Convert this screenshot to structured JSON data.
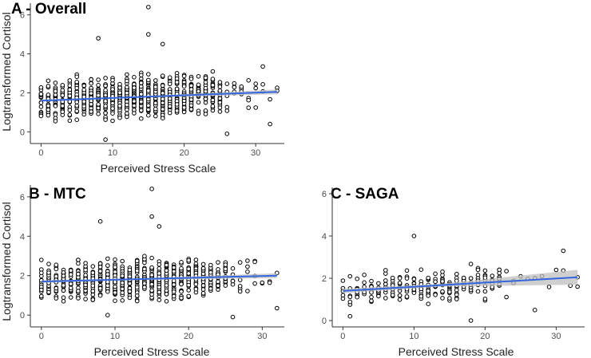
{
  "colors": {
    "points": "#000000",
    "fit_line": "#3366dd",
    "confidence_band": "#bfbfbf",
    "axis": "#333333",
    "tick_text": "#4d4d4d"
  },
  "chart_data": [
    {
      "type": "scatter",
      "title": "A - Overall",
      "xlabel": "Perceived Stress Scale",
      "ylabel": "Logtransformed Cortisol",
      "xlim": [
        -1.5,
        34
      ],
      "ylim": [
        -0.6,
        6.6
      ],
      "xticks": [
        0,
        10,
        20,
        30
      ],
      "yticks": [
        0,
        2,
        4,
        6
      ],
      "grid": false,
      "fit": {
        "method": "linear",
        "x": [
          0,
          33
        ],
        "y": [
          1.6,
          2.05
        ],
        "band_halfwidth": [
          0.05,
          0.12
        ]
      },
      "distribution": {
        "x_min": 0,
        "x_max": 33,
        "dense_x_max": 25,
        "y_center_at_0": 1.6,
        "y_center_at_33": 2.05,
        "y_spread": 1.45
      },
      "notable_points": [
        {
          "x": 15,
          "y": 6.4
        },
        {
          "x": 15,
          "y": 5.0
        },
        {
          "x": 8,
          "y": 4.8
        },
        {
          "x": 17,
          "y": 4.5
        },
        {
          "x": 31,
          "y": 3.35
        },
        {
          "x": 33,
          "y": 2.1
        },
        {
          "x": 32,
          "y": 0.4
        },
        {
          "x": 9,
          "y": -0.4
        },
        {
          "x": 26,
          "y": -0.1
        }
      ]
    },
    {
      "type": "scatter",
      "title": "B - MTC",
      "xlabel": "Perceived Stress Scale",
      "ylabel": "Logtransformed Cortisol",
      "xlim": [
        -1.5,
        33
      ],
      "ylim": [
        -0.6,
        6.6
      ],
      "xticks": [
        0,
        10,
        20,
        30
      ],
      "yticks": [
        0,
        2,
        4,
        6
      ],
      "grid": false,
      "fit": {
        "method": "linear",
        "x": [
          0,
          32
        ],
        "y": [
          1.7,
          2.0
        ],
        "band_halfwidth": [
          0.06,
          0.12
        ]
      },
      "distribution": {
        "x_min": 0,
        "x_max": 32,
        "dense_x_max": 25,
        "y_center_at_0": 1.7,
        "y_center_at_33": 2.0,
        "y_spread": 1.4
      },
      "notable_points": [
        {
          "x": 15,
          "y": 6.4
        },
        {
          "x": 15,
          "y": 5.0
        },
        {
          "x": 8,
          "y": 4.75
        },
        {
          "x": 16,
          "y": 4.5
        },
        {
          "x": 29,
          "y": 2.7
        },
        {
          "x": 32,
          "y": 0.35
        },
        {
          "x": 26,
          "y": -0.1
        },
        {
          "x": 9,
          "y": 0.0
        }
      ]
    },
    {
      "type": "scatter",
      "title": "C - SAGA",
      "xlabel": "Perceived Stress Scale",
      "ylabel": "",
      "xlim": [
        -1.5,
        34
      ],
      "ylim": [
        -0.3,
        6.3
      ],
      "xticks": [
        0,
        10,
        20,
        30
      ],
      "yticks": [
        0,
        2,
        4,
        6
      ],
      "grid": false,
      "fit": {
        "method": "linear",
        "x": [
          0,
          33
        ],
        "y": [
          1.4,
          2.05
        ],
        "band_halfwidth": [
          0.1,
          0.35
        ]
      },
      "distribution": {
        "x_min": 0,
        "x_max": 33,
        "dense_x_max": 22,
        "y_center_at_0": 1.4,
        "y_center_at_33": 2.05,
        "y_spread": 1.1
      },
      "notable_points": [
        {
          "x": 10,
          "y": 4.0
        },
        {
          "x": 31,
          "y": 3.3
        },
        {
          "x": 33,
          "y": 2.05
        },
        {
          "x": 27,
          "y": 0.5
        },
        {
          "x": 18,
          "y": 0.0
        },
        {
          "x": 1,
          "y": 0.2
        }
      ]
    }
  ]
}
